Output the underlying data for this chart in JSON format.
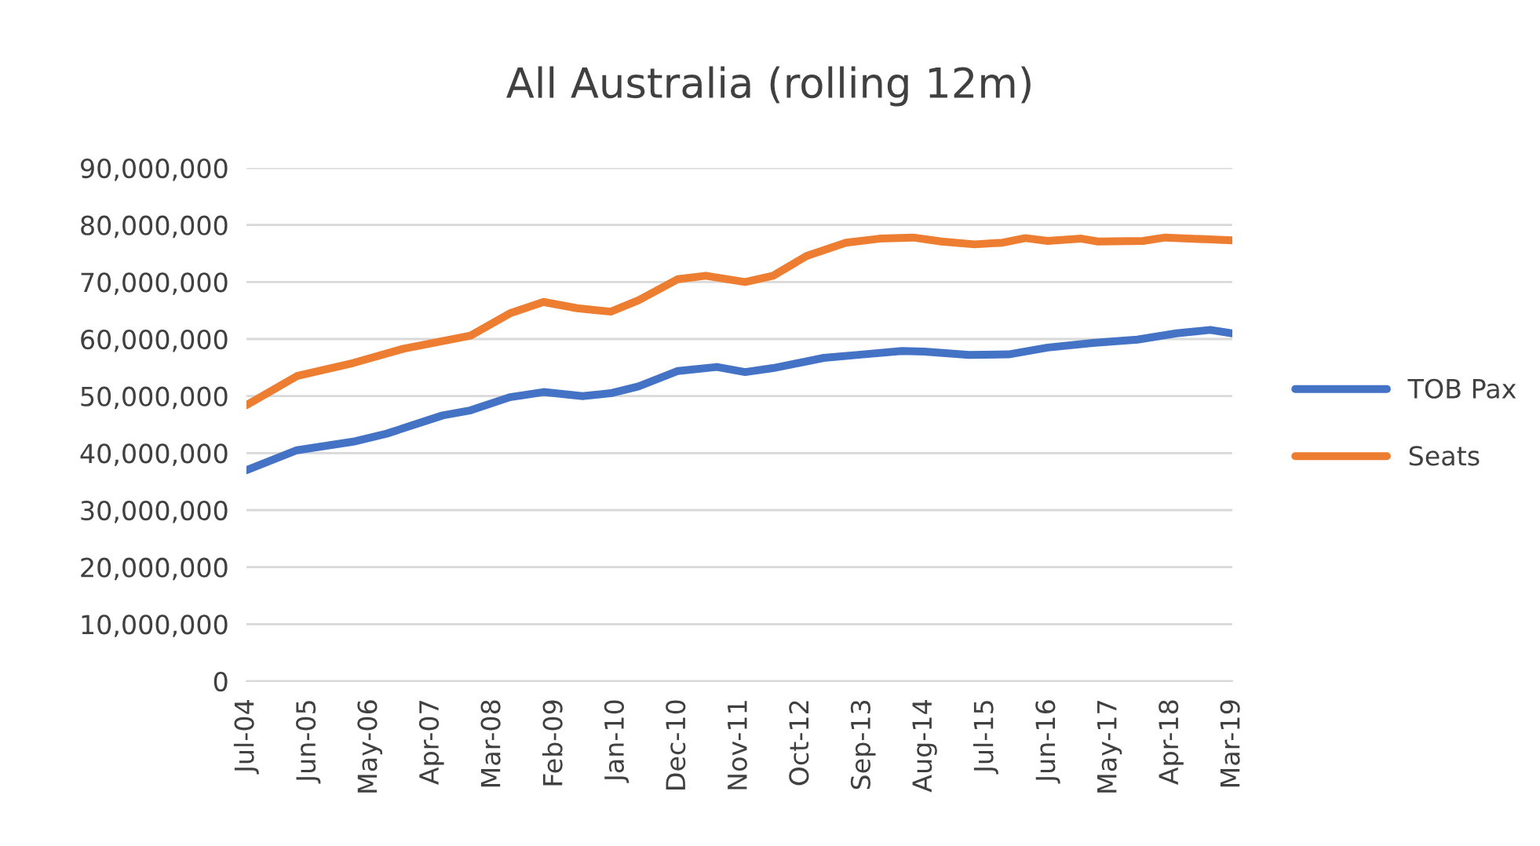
{
  "chart_data": {
    "type": "line",
    "title": "All Australia (rolling 12m)",
    "xlim": [
      "2004-07",
      "2019-03"
    ],
    "xticks": [
      {
        "value": "2004-07",
        "label": "Jul-04"
      },
      {
        "value": "2005-06",
        "label": "Jun-05"
      },
      {
        "value": "2006-05",
        "label": "May-06"
      },
      {
        "value": "2007-04",
        "label": "Apr-07"
      },
      {
        "value": "2008-03",
        "label": "Mar-08"
      },
      {
        "value": "2009-02",
        "label": "Feb-09"
      },
      {
        "value": "2010-01",
        "label": "Jan-10"
      },
      {
        "value": "2010-12",
        "label": "Dec-10"
      },
      {
        "value": "2011-11",
        "label": "Nov-11"
      },
      {
        "value": "2012-10",
        "label": "Oct-12"
      },
      {
        "value": "2013-09",
        "label": "Sep-13"
      },
      {
        "value": "2014-08",
        "label": "Aug-14"
      },
      {
        "value": "2015-07",
        "label": "Jul-15"
      },
      {
        "value": "2016-06",
        "label": "Jun-16"
      },
      {
        "value": "2017-05",
        "label": "May-17"
      },
      {
        "value": "2018-04",
        "label": "Apr-18"
      },
      {
        "value": "2019-03",
        "label": "Mar-19"
      }
    ],
    "ylim": [
      0,
      90000000
    ],
    "yticks": [
      {
        "value": 0,
        "label": "0"
      },
      {
        "value": 10000000,
        "label": "10,000,000"
      },
      {
        "value": 20000000,
        "label": "20,000,000"
      },
      {
        "value": 30000000,
        "label": "30,000,000"
      },
      {
        "value": 40000000,
        "label": "40,000,000"
      },
      {
        "value": 50000000,
        "label": "50,000,000"
      },
      {
        "value": 60000000,
        "label": "60,000,000"
      },
      {
        "value": 70000000,
        "label": "70,000,000"
      },
      {
        "value": 80000000,
        "label": "80,000,000"
      },
      {
        "value": 90000000,
        "label": "90,000,000"
      }
    ],
    "grid": "y",
    "legend": "right",
    "marker": "none",
    "line_style": "solid",
    "series": [
      {
        "name": "TOB Pax",
        "color": "#4472c4",
        "x": [
          "2004-07",
          "2005-04",
          "2006-02",
          "2006-08",
          "2007-06",
          "2007-11",
          "2008-06",
          "2008-12",
          "2009-07",
          "2009-12",
          "2010-05",
          "2010-12",
          "2011-07",
          "2011-12",
          "2012-05",
          "2013-02",
          "2013-09",
          "2014-04",
          "2014-08",
          "2015-04",
          "2015-11",
          "2016-06",
          "2017-02",
          "2017-10",
          "2018-05",
          "2018-11",
          "2019-03"
        ],
        "values": [
          37000000,
          40500000,
          42000000,
          43400000,
          46600000,
          47500000,
          49800000,
          50700000,
          50000000,
          50500000,
          51700000,
          54400000,
          55100000,
          54200000,
          54900000,
          56700000,
          57300000,
          57900000,
          57800000,
          57200000,
          57300000,
          58500000,
          59300000,
          59900000,
          61000000,
          61600000,
          61000000
        ]
      },
      {
        "name": "Seats",
        "color": "#ed7d31",
        "x": [
          "2004-07",
          "2005-04",
          "2006-02",
          "2006-11",
          "2007-11",
          "2008-06",
          "2008-12",
          "2009-06",
          "2009-12",
          "2010-05",
          "2010-12",
          "2011-05",
          "2011-12",
          "2012-05",
          "2012-11",
          "2013-06",
          "2013-12",
          "2014-06",
          "2014-11",
          "2015-05",
          "2015-10",
          "2016-02",
          "2016-06",
          "2016-12",
          "2017-03",
          "2017-11",
          "2018-03",
          "2018-10",
          "2019-03"
        ],
        "values": [
          48400000,
          53500000,
          55800000,
          58300000,
          60600000,
          64500000,
          66500000,
          65400000,
          64800000,
          66800000,
          70500000,
          71100000,
          70000000,
          71100000,
          74600000,
          76900000,
          77600000,
          77800000,
          77100000,
          76600000,
          76900000,
          77700000,
          77200000,
          77600000,
          77100000,
          77200000,
          77800000,
          77500000,
          77300000
        ]
      }
    ]
  }
}
